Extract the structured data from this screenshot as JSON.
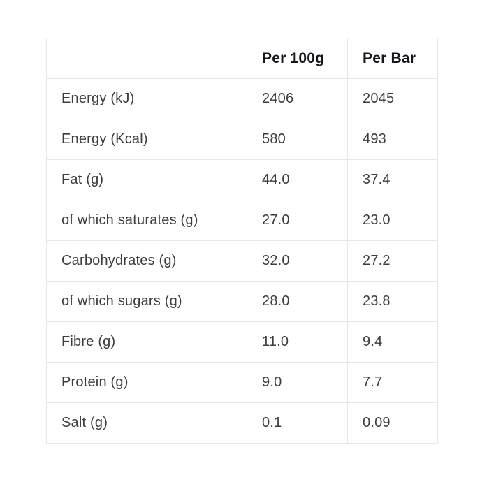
{
  "colors": {
    "background": "#ffffff",
    "border": "#e7e7e7",
    "header_text": "#15171c",
    "body_text": "#3d3d3d"
  },
  "table": {
    "header": {
      "label": "",
      "per_100g": "Per 100g",
      "per_bar": "Per Bar"
    },
    "rows": [
      {
        "label": "Energy (kJ)",
        "per_100g": "2406",
        "per_bar": "2045"
      },
      {
        "label": "Energy (Kcal)",
        "per_100g": "580",
        "per_bar": "493"
      },
      {
        "label": "Fat (g)",
        "per_100g": "44.0",
        "per_bar": "37.4"
      },
      {
        "label": "of which saturates (g)",
        "per_100g": "27.0",
        "per_bar": "23.0"
      },
      {
        "label": "Carbohydrates (g)",
        "per_100g": "32.0",
        "per_bar": "27.2"
      },
      {
        "label": "of which sugars (g)",
        "per_100g": "28.0",
        "per_bar": "23.8"
      },
      {
        "label": "Fibre (g)",
        "per_100g": "11.0",
        "per_bar": "9.4"
      },
      {
        "label": "Protein (g)",
        "per_100g": "9.0",
        "per_bar": "7.7"
      },
      {
        "label": "Salt (g)",
        "per_100g": "0.1",
        "per_bar": "0.09"
      }
    ]
  }
}
